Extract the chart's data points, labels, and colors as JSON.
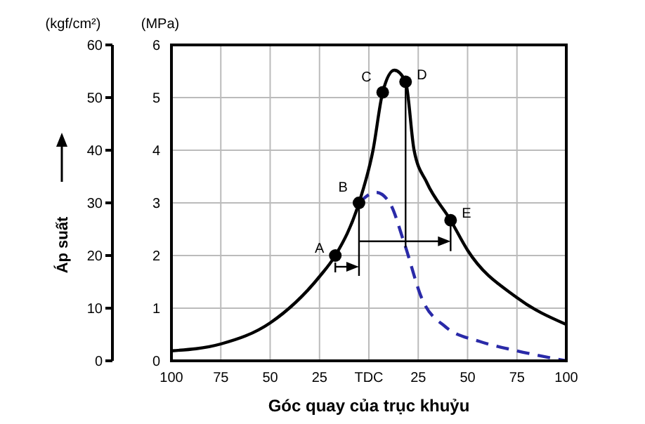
{
  "chart_data": {
    "type": "line",
    "xlabel": "Góc quay của trục khuỷu",
    "y2label": "Áp suất",
    "annotations": [
      "(kgf/cm²)",
      "(MPa)",
      {
        "text": "A",
        "x": -17,
        "y": 2.0
      },
      {
        "text": "B",
        "x": -5,
        "y": 3.0
      },
      {
        "text": "C",
        "x": 7,
        "y": 5.1
      },
      {
        "text": "D",
        "x": 18.6,
        "y": 5.3
      },
      {
        "text": "E",
        "x": 41.4,
        "y": 2.67
      }
    ],
    "series": [
      {
        "color": "#000000",
        "line_style": "solid",
        "x": [
          -100,
          -75,
          -50,
          -25,
          -17,
          -5,
          2.1,
          7,
          12.9,
          18.6,
          22.9,
          29.3,
          41.4,
          50,
          75,
          100
        ],
        "values": [
          0.19,
          0.32,
          0.72,
          1.6,
          2.0,
          3.0,
          4.0,
          5.1,
          5.52,
          5.3,
          4.0,
          3.39,
          2.67,
          2.1,
          1.2,
          0.69
        ]
      },
      {
        "color": "#2a2aa8",
        "line_style": "dashed",
        "x": [
          -5,
          3.6,
          10.7,
          17.9,
          27,
          39,
          56,
          75,
          100
        ],
        "values": [
          3.0,
          3.2,
          2.99,
          2.24,
          1.17,
          0.64,
          0.37,
          0.19,
          0
        ]
      },
      {
        "type": "scatter",
        "color": "#000000",
        "marker": "circle",
        "x": [
          -17,
          -5,
          7,
          18.6,
          41.4
        ],
        "values": [
          2.0,
          3.0,
          5.1,
          5.3,
          2.67
        ]
      }
    ],
    "xlim": [
      -100,
      100
    ],
    "xticks": [
      {
        "value": -100,
        "label": "100"
      },
      {
        "value": -75,
        "label": "75"
      },
      {
        "value": -50,
        "label": "50"
      },
      {
        "value": -25,
        "label": "25"
      },
      {
        "value": 0,
        "label": "TDC"
      },
      {
        "value": 25,
        "label": "25"
      },
      {
        "value": 50,
        "label": "50"
      },
      {
        "value": 75,
        "label": "75"
      },
      {
        "value": 100,
        "label": "100"
      }
    ],
    "ylim": [
      0,
      6
    ],
    "yticks": [
      0,
      1,
      2,
      3,
      4,
      5,
      6
    ],
    "y2lim": [
      0,
      60
    ],
    "y2ticks": [
      0,
      10,
      20,
      30,
      40,
      50,
      60
    ],
    "grid": true
  }
}
